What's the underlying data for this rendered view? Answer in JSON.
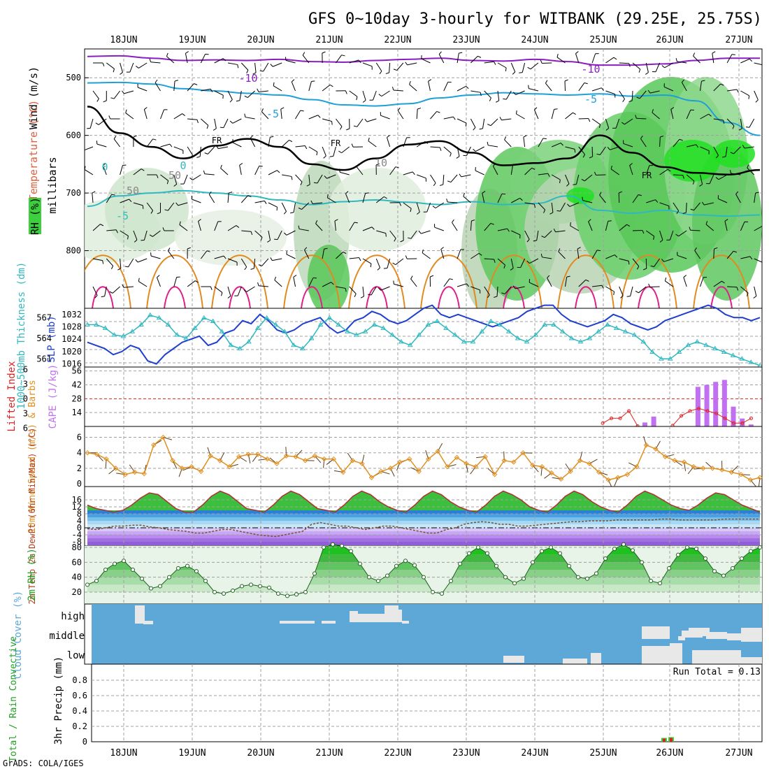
{
  "title": "GFS 0~10day 3-hourly for WITBANK (29.25E, 25.75S)",
  "footer": "GrADS: COLA/IGES",
  "dates": [
    "18JUN",
    "19JUN",
    "20JUN",
    "21JUN",
    "22JUN",
    "23JUN",
    "24JUN",
    "25JUN",
    "26JUN",
    "27JUN"
  ],
  "colors": {
    "frame": "#000000",
    "grid": "#a0a0a0",
    "temp_neg10": "#8a1fbf",
    "temp_neg5": "#1ea0d8",
    "temp_pos": "#e08a20",
    "rh_green": "#3ecf3e",
    "slp": "#1f3fcf",
    "thickness": "#30b8c0",
    "cape": "#c070f0",
    "lifted_index": "#e02020",
    "wind_speed": "#e09020",
    "cloud_bg": "#5ea8d8",
    "cloud_fill": "#e8e8e8"
  },
  "chart_data": [
    {
      "panel": "upper",
      "type": "area",
      "ylabel_lines": [
        "Wind (m/s)",
        "Temperature (°C)",
        "RH (%)",
        "millibars"
      ],
      "yticks": [
        500,
        600,
        700,
        800
      ],
      "ylim": [
        900,
        450
      ],
      "contour_labels": [
        "-10",
        "-10",
        "-5",
        "-5",
        "FR",
        "FR",
        "FR",
        "0",
        "0",
        "-5",
        "10",
        "50",
        "50"
      ],
      "series": [
        {
          "name": "-10",
          "level_mb": [
            463,
            462,
            466,
            470,
            469,
            470,
            468,
            472,
            473,
            470,
            468,
            466,
            470,
            471,
            468,
            472,
            478,
            478,
            476,
            470,
            466,
            466
          ]
        },
        {
          "name": "-5",
          "level_mb": [
            509,
            508,
            511,
            519,
            523,
            527,
            530,
            538,
            547,
            549,
            545,
            535,
            530,
            526,
            528,
            530,
            528,
            532,
            530,
            540,
            578,
            600
          ]
        },
        {
          "name": "FR",
          "level_mb": [
            550,
            596,
            620,
            640,
            618,
            606,
            620,
            650,
            660,
            640,
            616,
            610,
            630,
            652,
            648,
            640,
            600,
            630,
            655,
            665,
            668,
            660
          ]
        },
        {
          "name": "-5 (lower)",
          "level_mb": [
            723,
            705,
            700,
            696,
            700,
            705,
            712,
            720,
            715,
            712,
            716,
            720,
            715,
            720,
            718,
            705,
            730,
            735,
            730,
            738,
            740,
            738
          ]
        }
      ]
    },
    {
      "panel": "thickness_slp",
      "type": "line",
      "ylabel_left": "1000~500mb Thickness (dm)",
      "ylabel_right": "SLP (mb)",
      "yticks_left": [
        561,
        564,
        567
      ],
      "yticks_right": [
        1016,
        1020,
        1024,
        1028,
        1032
      ],
      "series": [
        {
          "name": "SLP",
          "values": [
            1023,
            1022,
            1021,
            1019,
            1020,
            1022,
            1021,
            1017,
            1016,
            1019,
            1021,
            1023,
            1024,
            1025,
            1022,
            1023,
            1026,
            1027,
            1030,
            1029,
            1032,
            1030,
            1027,
            1026,
            1027,
            1029,
            1030,
            1031,
            1028,
            1026,
            1027,
            1030,
            1031,
            1033,
            1032,
            1030,
            1029,
            1030,
            1032,
            1034,
            1035,
            1032,
            1031,
            1032,
            1031,
            1030,
            1029,
            1028,
            1029,
            1030,
            1031,
            1033,
            1034,
            1035,
            1035,
            1032,
            1030,
            1029,
            1028,
            1029,
            1030,
            1032,
            1031,
            1029,
            1028,
            1027,
            1028,
            1030,
            1031,
            1032,
            1033,
            1034,
            1035,
            1034,
            1032,
            1031,
            1031,
            1030,
            1031
          ]
        },
        {
          "name": "Thickness",
          "values": [
            566,
            566,
            565.5,
            564.5,
            564.3,
            565,
            566,
            567.4,
            567,
            566,
            564.5,
            564,
            565.5,
            567,
            566.5,
            565,
            563,
            562.5,
            563.5,
            565.5,
            567,
            566,
            565,
            563,
            562.5,
            564,
            566,
            567,
            566,
            565,
            564.5,
            565,
            566,
            565.5,
            564.5,
            563.5,
            563,
            564.5,
            566,
            566.5,
            565.5,
            564.5,
            563.5,
            563.5,
            565,
            566.5,
            566,
            565,
            564,
            563.5,
            564.5,
            566,
            566,
            565,
            564,
            563.5,
            564,
            565,
            566,
            565.5,
            565,
            564.5,
            563.5,
            562,
            561,
            561,
            562,
            563,
            563.5,
            563,
            562.5,
            562,
            561.5,
            561,
            560.5,
            560
          ]
        }
      ]
    },
    {
      "panel": "lifted_cape",
      "type": "bar",
      "ylabel_left": "Lifted Index",
      "ylabel_right": "CAPE (J/kg)",
      "yticks_left": [
        -6,
        -3,
        0,
        3,
        6
      ],
      "yticks_right": [
        14,
        28,
        42,
        56
      ],
      "series": [
        {
          "name": "CAPE",
          "values": [
            0,
            0,
            0,
            0,
            0,
            0,
            0,
            0,
            0,
            0,
            0,
            0,
            0,
            0,
            0,
            0,
            0,
            0,
            0,
            0,
            0,
            0,
            0,
            0,
            0,
            0,
            0,
            0,
            0,
            0,
            0,
            0,
            0,
            0,
            0,
            0,
            0,
            0,
            0,
            0,
            0,
            0,
            0,
            0,
            0,
            0,
            0,
            0,
            0,
            0,
            0,
            0,
            0,
            0,
            0,
            0,
            0,
            0,
            0,
            0,
            0,
            0,
            0,
            4,
            10,
            0,
            0,
            0,
            0,
            40,
            42,
            45,
            47,
            20,
            8,
            2,
            0
          ]
        },
        {
          "name": "Lifted Index",
          "values": [
            null,
            null,
            null,
            null,
            null,
            null,
            null,
            null,
            null,
            null,
            null,
            null,
            null,
            null,
            null,
            null,
            null,
            null,
            null,
            null,
            null,
            null,
            null,
            null,
            null,
            null,
            null,
            null,
            null,
            null,
            null,
            null,
            null,
            null,
            null,
            null,
            null,
            null,
            null,
            null,
            null,
            null,
            null,
            null,
            null,
            null,
            null,
            null,
            null,
            null,
            null,
            null,
            null,
            null,
            null,
            null,
            null,
            null,
            null,
            5,
            4,
            4,
            2.5,
            5.6,
            null,
            null,
            null,
            5.5,
            3.5,
            2.5,
            2,
            2.5,
            3,
            4,
            5,
            5,
            4,
            null
          ]
        }
      ]
    },
    {
      "panel": "wind10m",
      "type": "line",
      "ylabel": "10m Wind Speed (m/s) & Barbs",
      "yticks": [
        0,
        2,
        4,
        6
      ],
      "series": [
        {
          "name": "10m Wind Speed",
          "values": [
            4,
            3.8,
            3.2,
            2,
            1.2,
            1.5,
            1.3,
            5,
            6,
            3,
            2,
            2.2,
            1.6,
            3.6,
            3,
            2.2,
            3.5,
            3.8,
            3.8,
            3.2,
            2.6,
            3.6,
            3.5,
            3,
            3.6,
            3.2,
            3.2,
            1.5,
            3,
            2.6,
            0.8,
            1.6,
            2,
            2.8,
            3.2,
            1.6,
            3.2,
            4.2,
            2.2,
            3.4,
            2.6,
            2.2,
            3.5,
            1.2,
            3,
            2.8,
            4,
            2.4,
            2.2,
            1.4,
            0.6,
            1.6,
            3,
            2.6,
            1.5,
            0.5,
            0.8,
            1.2,
            2.2,
            5,
            4.5,
            3.5,
            3,
            2.8,
            2.2,
            2,
            2,
            1.8,
            1.5,
            1.2,
            0.5,
            0.8
          ]
        }
      ]
    },
    {
      "panel": "temp2m",
      "type": "area",
      "ylabel": "2m Temp 2m DewPt (6hr Min/Max) (°C)",
      "yticks": [
        -8,
        -4,
        0,
        4,
        8,
        12,
        16
      ],
      "series": [
        {
          "name": "2m Temp",
          "values": [
            13,
            11,
            10,
            9,
            10,
            13,
            17,
            20,
            19,
            15,
            11,
            9,
            9,
            13,
            18,
            21,
            19,
            15,
            11,
            10,
            9,
            13,
            18,
            21,
            19,
            15,
            11,
            10,
            9,
            13,
            18,
            21,
            19,
            15,
            12,
            10,
            9,
            13,
            18,
            21,
            19,
            15,
            12,
            10,
            9,
            13,
            18,
            21,
            19,
            16,
            12,
            10,
            9,
            13,
            18,
            21,
            19,
            15,
            12,
            10,
            9,
            13,
            18,
            21,
            19,
            16,
            13,
            11,
            10,
            13,
            17,
            20,
            19,
            16,
            13,
            11,
            9
          ]
        },
        {
          "name": "2m DewPt",
          "values": [
            -0.5,
            -1,
            0,
            1,
            1,
            1.5,
            1.5,
            0.5,
            0,
            -1,
            -1.5,
            -2,
            -3,
            -3,
            -2,
            -1,
            -1,
            -2,
            -3,
            -4,
            -4.5,
            -5,
            -4,
            -3,
            -2,
            2,
            3,
            2,
            1,
            1,
            0,
            -1,
            0,
            1,
            1,
            0,
            -1,
            -2,
            -3,
            -3,
            -1,
            0,
            2,
            3,
            3.5,
            3,
            2,
            2,
            1,
            1,
            1.5,
            2,
            2.5,
            3,
            3.5,
            3.5,
            4,
            4,
            4,
            4.5,
            4.5,
            4.5,
            4.5,
            4.5,
            5,
            5,
            4.5,
            4.5,
            4.5,
            4.5,
            4.5,
            5,
            5,
            5,
            5,
            5
          ]
        }
      ]
    },
    {
      "panel": "rh2m",
      "type": "area",
      "ylabel": "2m RH (%)",
      "yticks": [
        20,
        40,
        60,
        80
      ],
      "series": [
        {
          "name": "2m RH",
          "values": [
            30,
            35,
            50,
            58,
            62,
            50,
            38,
            25,
            28,
            40,
            52,
            55,
            48,
            35,
            20,
            18,
            22,
            28,
            30,
            28,
            26,
            18,
            15,
            17,
            20,
            45,
            80,
            84,
            82,
            75,
            58,
            40,
            35,
            42,
            55,
            62,
            56,
            40,
            20,
            18,
            35,
            58,
            72,
            80,
            72,
            55,
            40,
            32,
            38,
            60,
            75,
            80,
            72,
            55,
            40,
            38,
            45,
            65,
            78,
            84,
            76,
            60,
            35,
            32,
            52,
            70,
            80,
            78,
            65,
            48,
            42,
            52,
            65,
            75,
            80
          ]
        }
      ]
    },
    {
      "panel": "cloud",
      "type": "heatmap",
      "ylabel": "Cloud Cover (%)",
      "levels": [
        "high",
        "middle",
        "low"
      ]
    },
    {
      "panel": "precip",
      "type": "bar",
      "ylabel_left": "Total / Rain Convective",
      "ylabel_right": "3hr Precip (mm)",
      "yticks": [
        0,
        0.2,
        0.4,
        0.6,
        0.8
      ],
      "ylim": [
        0,
        1
      ],
      "annotation": "Run Total = 0.13",
      "series": [
        {
          "name": "Total",
          "values": [
            0.05,
            0.06
          ]
        },
        {
          "name": "Convective",
          "values": [
            0.04,
            0.05
          ]
        }
      ]
    }
  ]
}
